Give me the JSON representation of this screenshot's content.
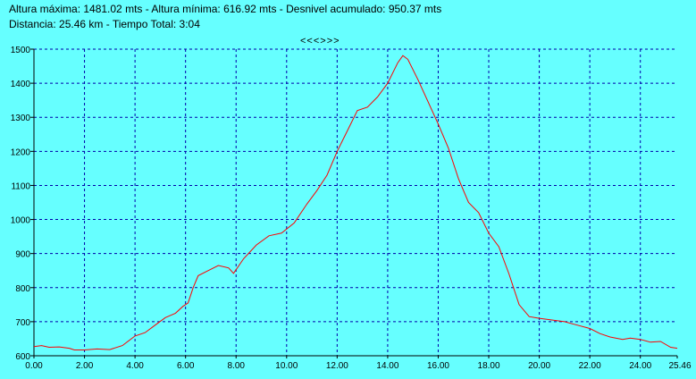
{
  "header": {
    "line1": "Altura máxima: 1481.02 mts - Altura mínima: 616.92 mts - Desnivel acumulado: 950.37 mts",
    "line2": "Distancia: 25.46 km - Tiempo Total: 3:04"
  },
  "nav": {
    "label": "<<<>>>"
  },
  "chart_data": {
    "type": "line",
    "title": "",
    "xlabel": "",
    "ylabel": "",
    "xlim": [
      0,
      25.46
    ],
    "ylim": [
      600,
      1500
    ],
    "x_ticks": [
      "0.00",
      "2.00",
      "4.00",
      "6.00",
      "8.00",
      "10.00",
      "12.00",
      "14.00",
      "16.00",
      "18.00",
      "20.00",
      "22.00",
      "24.00",
      "25.46"
    ],
    "x_tick_values": [
      0,
      2,
      4,
      6,
      8,
      10,
      12,
      14,
      16,
      18,
      20,
      22,
      24,
      25.46
    ],
    "y_ticks": [
      "600",
      "700",
      "800",
      "900",
      "1000",
      "1100",
      "1200",
      "1300",
      "1400",
      "1500"
    ],
    "y_tick_values": [
      600,
      700,
      800,
      900,
      1000,
      1100,
      1200,
      1300,
      1400,
      1500
    ],
    "grid": true,
    "colors": {
      "background": "#66ffff",
      "line": "#ff0000",
      "grid": "#0000aa",
      "axis": "#000000"
    },
    "series": [
      {
        "x": [
          0,
          0.3,
          0.6,
          1.0,
          1.4,
          1.6,
          2.0,
          2.5,
          3.0,
          3.5,
          4.0,
          4.4,
          4.8,
          5.2,
          5.6,
          5.9,
          6.1,
          6.3,
          6.5,
          6.9,
          7.3,
          7.7,
          7.9,
          8.3,
          8.8,
          9.3,
          9.8,
          10.3,
          10.8,
          11.2,
          11.6,
          12.0,
          12.4,
          12.8,
          13.2,
          13.6,
          14.0,
          14.4,
          14.6,
          14.8,
          15.2,
          15.6,
          16.0,
          16.4,
          16.8,
          17.2,
          17.6,
          18.0,
          18.4,
          18.8,
          19.2,
          19.6,
          20.0,
          20.5,
          21.0,
          21.5,
          22.0,
          22.4,
          22.8,
          23.3,
          23.6,
          24.0,
          24.4,
          24.8,
          25.2,
          25.46
        ],
        "y": [
          627,
          630,
          625,
          626,
          622,
          617,
          617,
          620,
          618,
          630,
          658,
          668,
          690,
          712,
          725,
          745,
          755,
          800,
          835,
          850,
          865,
          858,
          842,
          885,
          925,
          952,
          960,
          990,
          1045,
          1085,
          1130,
          1200,
          1260,
          1320,
          1330,
          1360,
          1400,
          1460,
          1481,
          1470,
          1410,
          1345,
          1280,
          1210,
          1120,
          1050,
          1020,
          960,
          920,
          840,
          750,
          715,
          710,
          705,
          700,
          690,
          680,
          665,
          655,
          648,
          652,
          648,
          640,
          642,
          625,
          622
        ]
      }
    ]
  }
}
